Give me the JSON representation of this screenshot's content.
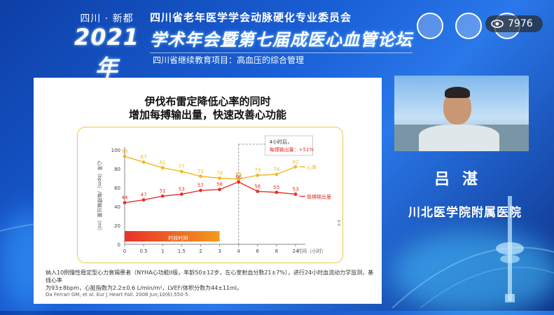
{
  "header": {
    "city": "四川 · 新都",
    "year": "2021年",
    "line1": "四川省老年医学学会动脉硬化专业委员会",
    "line2": "学术年会暨第七届成医心血管论坛",
    "line3": "四川省继续教育项目：高血压的综合管理"
  },
  "viewer": {
    "icon": "eye-icon",
    "count": "7976"
  },
  "slide": {
    "title1": "伊伐布雷定降低心率的同时",
    "title2": "增加每搏输出量，快速改善心功能",
    "footnote1": "纳入10例慢性稳定型心力衰竭患者（NYHA心功能II级，年龄50±12岁，左心室射血分数21±7%），进行24小时血流动力学监测，基线心率",
    "footnote2": "为93±8bpm，心脏指数为2.2±0.6 L/min/m²，LVEF/体积分数为44±11ml。",
    "citation": "Da Ferrari GM, et al. Eur J Heart Fail. 2008 Jun;10(6):550-5."
  },
  "chart_data": {
    "type": "line",
    "ylabel": "心率（bpm）/每搏输出量（ml）",
    "xlabel": "时间（小时）",
    "x": [
      "0",
      "0.5",
      "1",
      "1.5",
      "2",
      "3",
      "4",
      "6",
      "8",
      "24"
    ],
    "yticks": [
      "0",
      "20",
      "40",
      "60",
      "80",
      "100"
    ],
    "ylim": [
      0,
      100
    ],
    "series": [
      {
        "name": "心率",
        "color": "#f2b623",
        "values": [
          93,
          87,
          81,
          77,
          72,
          70,
          69,
          73,
          74,
          82
        ]
      },
      {
        "name": "每搏输出量",
        "color": "#e8302a",
        "values": [
          44,
          47,
          51,
          53,
          57,
          58,
          66,
          56,
          55,
          53
        ]
      }
    ],
    "annotation": {
      "line1": "4小时后，",
      "line2": "每搏输出量：+51%"
    },
    "infusion_label": "时段时间"
  },
  "speaker": {
    "name": "吕湛",
    "org": "川北医学院附属医院"
  },
  "colors": {
    "hr": "#f2b623",
    "sv": "#e8302a",
    "bg": "#1a5fd6"
  }
}
